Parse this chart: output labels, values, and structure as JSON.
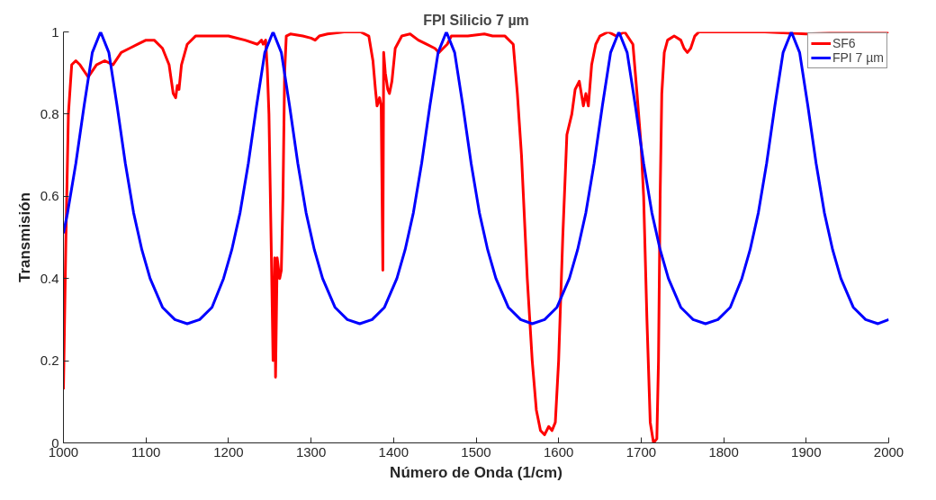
{
  "chart_data": {
    "type": "line",
    "title": "FPI Silicio 7 µm",
    "xlabel": "Número de Onda (1/cm)",
    "ylabel": "Transmisión",
    "xlim": [
      1000,
      2000
    ],
    "ylim": [
      0,
      1
    ],
    "xticks": [
      1000,
      1100,
      1200,
      1300,
      1400,
      1500,
      1600,
      1700,
      1800,
      1900,
      2000
    ],
    "yticks": [
      0,
      0.2,
      0.4,
      0.6,
      0.8,
      1
    ],
    "grid": false,
    "legend": "top right",
    "marker": "none",
    "line_style": "solid",
    "series": [
      {
        "name": "SF6",
        "color": "#ff0000",
        "x": [
          1000,
          1003,
          1006,
          1010,
          1015,
          1020,
          1030,
          1040,
          1050,
          1060,
          1070,
          1080,
          1090,
          1100,
          1110,
          1120,
          1128,
          1133,
          1136,
          1138,
          1140,
          1143,
          1150,
          1160,
          1180,
          1200,
          1220,
          1235,
          1240,
          1242,
          1245,
          1247,
          1249,
          1252,
          1254,
          1256,
          1257,
          1259,
          1262,
          1264,
          1266,
          1268,
          1270,
          1275,
          1290,
          1300,
          1305,
          1310,
          1320,
          1340,
          1360,
          1370,
          1375,
          1378,
          1380,
          1383,
          1385,
          1387,
          1388,
          1390,
          1393,
          1395,
          1398,
          1402,
          1410,
          1420,
          1430,
          1440,
          1450,
          1455,
          1460,
          1465,
          1470,
          1490,
          1510,
          1520,
          1535,
          1545,
          1550,
          1555,
          1562,
          1568,
          1573,
          1578,
          1583,
          1588,
          1592,
          1596,
          1600,
          1605,
          1610,
          1616,
          1620,
          1625,
          1630,
          1633,
          1636,
          1640,
          1645,
          1650,
          1660,
          1670,
          1680,
          1690,
          1695,
          1700,
          1703,
          1707,
          1711,
          1715,
          1719,
          1721,
          1723,
          1725,
          1728,
          1732,
          1740,
          1748,
          1752,
          1756,
          1760,
          1765,
          1770,
          1800,
          1850,
          1900,
          1950,
          2000
        ],
        "values": [
          0.13,
          0.5,
          0.8,
          0.92,
          0.93,
          0.92,
          0.89,
          0.92,
          0.93,
          0.92,
          0.95,
          0.96,
          0.97,
          0.98,
          0.98,
          0.96,
          0.92,
          0.85,
          0.84,
          0.87,
          0.86,
          0.92,
          0.97,
          0.99,
          0.99,
          0.99,
          0.98,
          0.97,
          0.98,
          0.97,
          0.98,
          0.91,
          0.8,
          0.45,
          0.2,
          0.45,
          0.16,
          0.45,
          0.4,
          0.42,
          0.6,
          0.9,
          0.99,
          0.995,
          0.99,
          0.985,
          0.98,
          0.99,
          0.995,
          1,
          1,
          0.99,
          0.93,
          0.86,
          0.82,
          0.84,
          0.82,
          0.42,
          0.95,
          0.9,
          0.86,
          0.85,
          0.88,
          0.96,
          0.99,
          0.995,
          0.98,
          0.97,
          0.96,
          0.95,
          0.96,
          0.97,
          0.99,
          0.99,
          0.995,
          0.99,
          0.99,
          0.97,
          0.85,
          0.7,
          0.4,
          0.2,
          0.08,
          0.03,
          0.02,
          0.04,
          0.03,
          0.05,
          0.2,
          0.5,
          0.75,
          0.8,
          0.86,
          0.88,
          0.82,
          0.85,
          0.82,
          0.92,
          0.97,
          0.99,
          1,
          0.99,
          1,
          0.97,
          0.85,
          0.72,
          0.6,
          0.3,
          0.05,
          0,
          0.01,
          0.2,
          0.6,
          0.85,
          0.95,
          0.98,
          0.99,
          0.98,
          0.96,
          0.95,
          0.96,
          0.99,
          1,
          1,
          1,
          0.995,
          1,
          1
        ]
      },
      {
        "name": "FPI 7 µm",
        "color": "#0000ff",
        "x": [
          1000,
          1005,
          1015,
          1025,
          1035,
          1045,
          1055,
          1065,
          1075,
          1085,
          1095,
          1105,
          1120,
          1135,
          1150,
          1165,
          1180,
          1194,
          1204,
          1214,
          1224,
          1234,
          1244,
          1254,
          1264,
          1274,
          1284,
          1294,
          1304,
          1314,
          1329,
          1344,
          1359,
          1374,
          1389,
          1404,
          1414,
          1424,
          1434,
          1444,
          1454,
          1464,
          1474,
          1484,
          1494,
          1504,
          1514,
          1524,
          1539,
          1554,
          1568,
          1583,
          1598,
          1613,
          1623,
          1633,
          1643,
          1653,
          1663,
          1673,
          1683,
          1693,
          1703,
          1713,
          1723,
          1733,
          1748,
          1763,
          1778,
          1793,
          1808,
          1822,
          1832,
          1842,
          1852,
          1862,
          1872,
          1882,
          1892,
          1902,
          1912,
          1922,
          1932,
          1942,
          1957,
          1972,
          1987,
          2000
        ],
        "values": [
          0.51,
          0.56,
          0.68,
          0.82,
          0.95,
          1,
          0.95,
          0.82,
          0.68,
          0.56,
          0.47,
          0.4,
          0.33,
          0.3,
          0.29,
          0.3,
          0.33,
          0.4,
          0.47,
          0.56,
          0.68,
          0.82,
          0.95,
          1,
          0.95,
          0.82,
          0.68,
          0.56,
          0.47,
          0.4,
          0.33,
          0.3,
          0.29,
          0.3,
          0.33,
          0.4,
          0.47,
          0.56,
          0.68,
          0.82,
          0.95,
          1,
          0.95,
          0.82,
          0.68,
          0.56,
          0.47,
          0.4,
          0.33,
          0.3,
          0.29,
          0.3,
          0.33,
          0.4,
          0.47,
          0.56,
          0.68,
          0.82,
          0.95,
          1,
          0.95,
          0.82,
          0.68,
          0.56,
          0.47,
          0.4,
          0.33,
          0.3,
          0.29,
          0.3,
          0.33,
          0.4,
          0.47,
          0.56,
          0.68,
          0.82,
          0.95,
          1,
          0.95,
          0.82,
          0.68,
          0.56,
          0.47,
          0.4,
          0.33,
          0.3,
          0.29,
          0.3
        ]
      }
    ]
  }
}
